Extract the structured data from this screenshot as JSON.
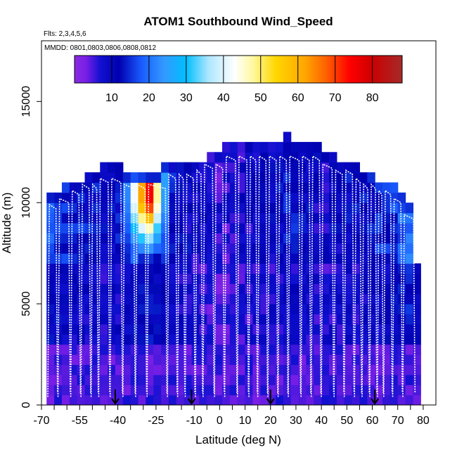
{
  "chart_data": {
    "type": "heatmap",
    "title": "ATOM1 Southbound Wind_Speed",
    "flights_label": "Flts: 2,3,4,5,6",
    "dates_label": "MMDD: 0801,0803,0806,0808,0812",
    "xlabel": "Latitude (deg N)",
    "ylabel": "Altitude (m)",
    "xlim": [
      -70,
      85
    ],
    "ylim": [
      0,
      18000
    ],
    "x_ticks": [
      -70,
      -55,
      -40,
      -25,
      -10,
      0,
      10,
      20,
      30,
      40,
      50,
      60,
      70,
      80
    ],
    "x_tick_labels": [
      "-70",
      "-55",
      "-40",
      "-25",
      "-10",
      "0",
      "10",
      "20",
      "30",
      "40",
      "50",
      "60",
      "70",
      "80"
    ],
    "x_minor_ticks": [
      -65,
      -60,
      -50,
      -45,
      -35,
      -30,
      -20,
      -15,
      -5,
      5,
      15,
      25,
      35,
      45,
      55,
      65,
      75
    ],
    "y_ticks": [
      0,
      5000,
      10000,
      15000
    ],
    "y_tick_labels": [
      "0",
      "5000",
      "10000",
      "15000"
    ],
    "colorbar": {
      "min": 0,
      "max": 88,
      "ticks": [
        10,
        20,
        30,
        40,
        50,
        60,
        70,
        80
      ],
      "tick_labels": [
        "10",
        "20",
        "30",
        "40",
        "50",
        "60",
        "70",
        "80"
      ]
    },
    "colors": {
      "stops": [
        "#8a2be2",
        "#7a1fe6",
        "#1010d0",
        "#0000b0",
        "#1a5cff",
        "#3399ff",
        "#00bfff",
        "#aee6ff",
        "#ffffff",
        "#fff8a0",
        "#ffd700",
        "#ffa500",
        "#ff5a00",
        "#ff0000",
        "#cc0000",
        "#a52a2a"
      ],
      "stop_values": [
        0,
        3,
        7,
        12,
        18,
        24,
        30,
        36,
        43,
        48,
        54,
        62,
        68,
        74,
        80,
        88
      ]
    },
    "grid": false,
    "profile_latitudes": [
      -67.5,
      -63.5,
      -58.5,
      -54.5,
      -50.5,
      -47.5,
      -43.0,
      -38.0,
      -33.0,
      -28.5,
      -20.5,
      -16.5,
      -13.5,
      -9.5,
      -6.5,
      -2.0,
      2.0,
      7.0,
      11.5,
      15.0,
      19.0,
      23.0,
      27.0,
      32.0,
      36.0,
      40.0,
      45.0,
      49.0,
      53.0,
      56.0,
      59.0,
      62.0,
      64.5,
      68.0,
      72.0,
      77.0
    ],
    "arrow_latitudes": [
      -41,
      -11,
      20,
      61
    ],
    "columns": [
      {
        "lat": -66.5,
        "ztop": 10500,
        "bg": 16,
        "hi": 0
      },
      {
        "lat": -63.5,
        "ztop": 10500,
        "bg": 16,
        "hi": 0
      },
      {
        "lat": -60.5,
        "ztop": 10800,
        "bg": 14,
        "hi": 0
      },
      {
        "lat": -57.5,
        "ztop": 11200,
        "bg": 13,
        "hi": 0
      },
      {
        "lat": -54.5,
        "ztop": 11200,
        "bg": 13,
        "hi": 0
      },
      {
        "lat": -51.5,
        "ztop": 11500,
        "bg": 12,
        "hi": 0
      },
      {
        "lat": -48.5,
        "ztop": 11500,
        "bg": 12,
        "hi": 0
      },
      {
        "lat": -45.5,
        "ztop": 11800,
        "bg": 11,
        "hi": 0
      },
      {
        "lat": -42.5,
        "ztop": 11800,
        "bg": 11,
        "hi": 0
      },
      {
        "lat": -39.5,
        "ztop": 11800,
        "bg": 12,
        "hi": 0
      },
      {
        "lat": -36.5,
        "ztop": 11500,
        "bg": 14,
        "hi": 22
      },
      {
        "lat": -33.5,
        "ztop": 11500,
        "bg": 16,
        "hi": 42
      },
      {
        "lat": -30.5,
        "ztop": 11500,
        "bg": 18,
        "hi": 62
      },
      {
        "lat": -27.5,
        "ztop": 11500,
        "bg": 18,
        "hi": 75
      },
      {
        "lat": -24.5,
        "ztop": 11500,
        "bg": 16,
        "hi": 48
      },
      {
        "lat": -21.5,
        "ztop": 11800,
        "bg": 14,
        "hi": 25
      },
      {
        "lat": -18.5,
        "ztop": 12000,
        "bg": 12,
        "hi": 0
      },
      {
        "lat": -15.5,
        "ztop": 12000,
        "bg": 11,
        "hi": 0
      },
      {
        "lat": -12.5,
        "ztop": 12000,
        "bg": 10,
        "hi": 0
      },
      {
        "lat": -9.5,
        "ztop": 12200,
        "bg": 9,
        "hi": 0
      },
      {
        "lat": -6.5,
        "ztop": 12200,
        "bg": 8,
        "hi": 0
      },
      {
        "lat": -3.5,
        "ztop": 12500,
        "bg": 7,
        "hi": 0
      },
      {
        "lat": -0.5,
        "ztop": 12500,
        "bg": 6,
        "hi": 0
      },
      {
        "lat": 2.5,
        "ztop": 12900,
        "bg": 6,
        "hi": 0
      },
      {
        "lat": 5.5,
        "ztop": 12900,
        "bg": 7,
        "hi": 0
      },
      {
        "lat": 8.5,
        "ztop": 12900,
        "bg": 8,
        "hi": 0
      },
      {
        "lat": 11.5,
        "ztop": 12900,
        "bg": 9,
        "hi": 0
      },
      {
        "lat": 14.5,
        "ztop": 12900,
        "bg": 9,
        "hi": 0
      },
      {
        "lat": 17.5,
        "ztop": 12900,
        "bg": 10,
        "hi": 0
      },
      {
        "lat": 20.5,
        "ztop": 12900,
        "bg": 10,
        "hi": 0
      },
      {
        "lat": 23.5,
        "ztop": 12900,
        "bg": 11,
        "hi": 0
      },
      {
        "lat": 26.5,
        "ztop": 13400,
        "bg": 12,
        "hi": 0
      },
      {
        "lat": 29.5,
        "ztop": 12900,
        "bg": 12,
        "hi": 0
      },
      {
        "lat": 32.5,
        "ztop": 12900,
        "bg": 11,
        "hi": 0
      },
      {
        "lat": 35.5,
        "ztop": 12900,
        "bg": 10,
        "hi": 0
      },
      {
        "lat": 38.5,
        "ztop": 12900,
        "bg": 9,
        "hi": 0
      },
      {
        "lat": 41.5,
        "ztop": 12500,
        "bg": 9,
        "hi": 0
      },
      {
        "lat": 44.5,
        "ztop": 12500,
        "bg": 10,
        "hi": 0
      },
      {
        "lat": 47.5,
        "ztop": 12200,
        "bg": 10,
        "hi": 0
      },
      {
        "lat": 50.5,
        "ztop": 12200,
        "bg": 11,
        "hi": 0
      },
      {
        "lat": 53.5,
        "ztop": 11800,
        "bg": 11,
        "hi": 0
      },
      {
        "lat": 56.5,
        "ztop": 11500,
        "bg": 12,
        "hi": 0
      },
      {
        "lat": 59.5,
        "ztop": 11500,
        "bg": 12,
        "hi": 0
      },
      {
        "lat": 62.5,
        "ztop": 11200,
        "bg": 13,
        "hi": 0
      },
      {
        "lat": 65.5,
        "ztop": 11200,
        "bg": 14,
        "hi": 0
      },
      {
        "lat": 68.5,
        "ztop": 10800,
        "bg": 16,
        "hi": 0
      },
      {
        "lat": 71.5,
        "ztop": 10500,
        "bg": 18,
        "hi": 0
      },
      {
        "lat": 74.5,
        "ztop": 10000,
        "bg": 20,
        "hi": 0
      },
      {
        "lat": 77.5,
        "ztop": 7000,
        "bg": 14,
        "hi": 0
      }
    ]
  }
}
